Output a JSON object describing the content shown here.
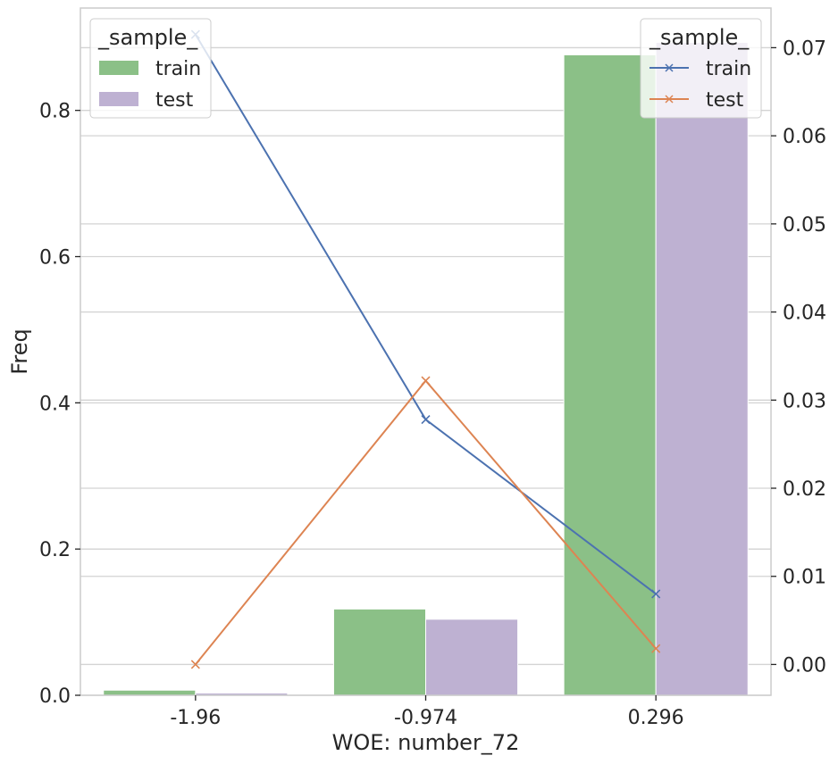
{
  "chart_data": {
    "type": "bar",
    "categories": [
      "-1.96",
      "-0.974",
      "0.296"
    ],
    "xlabel": "WOE: number_72",
    "ylabel": "Freq",
    "ylim": [
      0,
      0.94
    ],
    "yticks": [
      "0.0",
      "0.2",
      "0.4",
      "0.6",
      "0.8"
    ],
    "y2lim": [
      -0.0035,
      0.0745
    ],
    "y2ticks": [
      "0.00",
      "0.01",
      "0.02",
      "0.03",
      "0.04",
      "0.05",
      "0.06",
      "0.07"
    ],
    "grid": true,
    "bar_series": [
      {
        "name": "train",
        "color": "#8bc087",
        "values": [
          0.007,
          0.118,
          0.876
        ]
      },
      {
        "name": "test",
        "color": "#beb1d2",
        "values": [
          0.003,
          0.104,
          0.893
        ]
      }
    ],
    "line_series": [
      {
        "name": "train",
        "color": "#4c72b0",
        "marker": "x",
        "values": [
          0.0715,
          0.0278,
          0.008
        ]
      },
      {
        "name": "test",
        "color": "#dd8452",
        "marker": "x",
        "values": [
          0.0,
          0.0322,
          0.0018
        ]
      }
    ],
    "bar_legend": {
      "title": "_sample_",
      "position": "upper-left",
      "labels": [
        "train",
        "test"
      ]
    },
    "line_legend": {
      "title": "_sample_",
      "position": "upper-right",
      "labels": [
        "train",
        "test"
      ]
    }
  }
}
